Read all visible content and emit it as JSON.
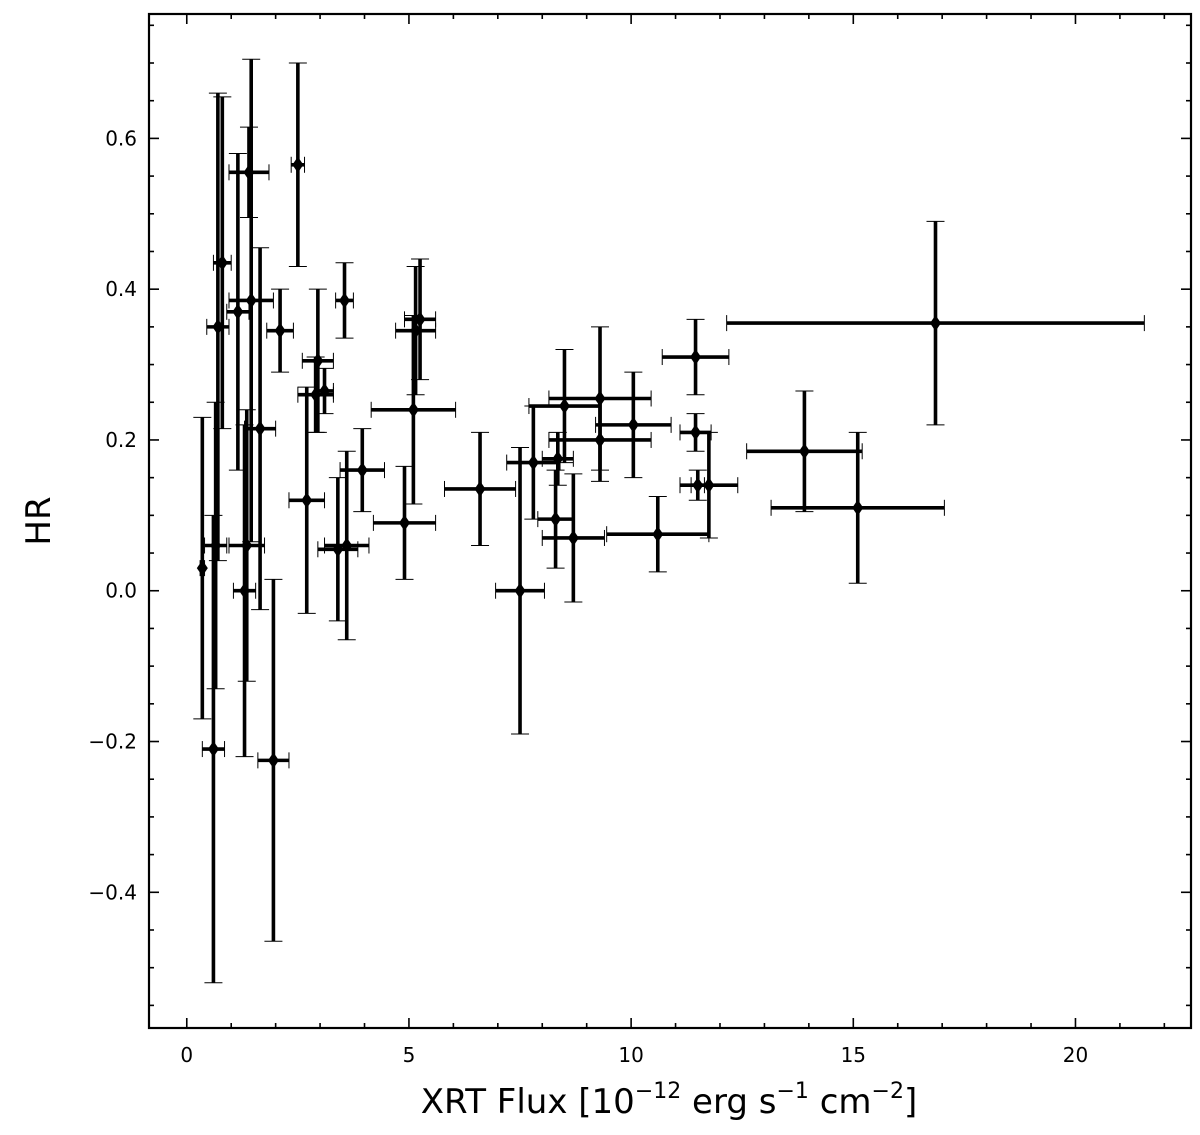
{
  "chart_data": {
    "type": "scatter",
    "title": "",
    "xlabel": "XRT Flux",
    "xlabel_unit_prefix": "[10",
    "xlabel_unit_exp1": "−12",
    "xlabel_unit_erg": " erg s",
    "xlabel_unit_exp2": "−1",
    "xlabel_unit_cm": " cm",
    "xlabel_unit_exp3": "−2",
    "xlabel_unit_suffix": "]",
    "ylabel": "HR",
    "xlim": [
      -0.85,
      22.6
    ],
    "ylim": [
      -0.58,
      0.765
    ],
    "x_ticks": [
      0,
      5,
      10,
      15,
      20
    ],
    "x_tick_labels": [
      "0",
      "5",
      "10",
      "15",
      "20"
    ],
    "y_ticks": [
      -0.4,
      -0.2,
      0.0,
      0.2,
      0.4,
      0.6
    ],
    "y_tick_labels": [
      "−0.4",
      "−0.2",
      "0.0",
      "0.2",
      "0.4",
      "0.6"
    ],
    "grid": false,
    "legend": "none",
    "marker": "diamond",
    "color": "#000000",
    "points": [
      {
        "x": 0.35,
        "y": 0.03,
        "xerr": 0.05,
        "yerr": 0.2
      },
      {
        "x": 0.6,
        "y": -0.21,
        "xerr": 0.25,
        "yerr": 0.31
      },
      {
        "x": 0.65,
        "y": 0.06,
        "xerr": 0.25,
        "yerr": 0.19
      },
      {
        "x": 0.7,
        "y": 0.35,
        "xerr": 0.25,
        "yerr": 0.31
      },
      {
        "x": 0.8,
        "y": 0.435,
        "xerr": 0.2,
        "yerr": 0.22
      },
      {
        "x": 1.15,
        "y": 0.37,
        "xerr": 0.25,
        "yerr": 0.21
      },
      {
        "x": 1.3,
        "y": 0.0,
        "xerr": 0.25,
        "yerr": 0.22
      },
      {
        "x": 1.35,
        "y": 0.06,
        "xerr": 0.4,
        "yerr": 0.18
      },
      {
        "x": 1.4,
        "y": 0.555,
        "xerr": 0.45,
        "yerr": 0.06
      },
      {
        "x": 1.45,
        "y": 0.385,
        "xerr": 0.5,
        "yerr": 0.32
      },
      {
        "x": 1.65,
        "y": 0.215,
        "xerr": 0.35,
        "yerr": 0.24
      },
      {
        "x": 1.95,
        "y": -0.225,
        "xerr": 0.35,
        "yerr": 0.24
      },
      {
        "x": 2.1,
        "y": 0.345,
        "xerr": 0.3,
        "yerr": 0.055
      },
      {
        "x": 2.5,
        "y": 0.565,
        "xerr": 0.15,
        "yerr": 0.135
      },
      {
        "x": 2.7,
        "y": 0.12,
        "xerr": 0.4,
        "yerr": 0.15
      },
      {
        "x": 2.9,
        "y": 0.26,
        "xerr": 0.4,
        "yerr": 0.05
      },
      {
        "x": 2.95,
        "y": 0.305,
        "xerr": 0.35,
        "yerr": 0.095
      },
      {
        "x": 3.1,
        "y": 0.265,
        "xerr": 0.2,
        "yerr": 0.03
      },
      {
        "x": 3.4,
        "y": 0.055,
        "xerr": 0.45,
        "yerr": 0.095
      },
      {
        "x": 3.55,
        "y": 0.385,
        "xerr": 0.2,
        "yerr": 0.05
      },
      {
        "x": 3.6,
        "y": 0.06,
        "xerr": 0.5,
        "yerr": 0.125
      },
      {
        "x": 3.95,
        "y": 0.16,
        "xerr": 0.5,
        "yerr": 0.055
      },
      {
        "x": 4.9,
        "y": 0.09,
        "xerr": 0.7,
        "yerr": 0.075
      },
      {
        "x": 5.1,
        "y": 0.24,
        "xerr": 0.95,
        "yerr": 0.125
      },
      {
        "x": 5.15,
        "y": 0.345,
        "xerr": 0.45,
        "yerr": 0.085
      },
      {
        "x": 5.25,
        "y": 0.36,
        "xerr": 0.35,
        "yerr": 0.08
      },
      {
        "x": 6.6,
        "y": 0.135,
        "xerr": 0.8,
        "yerr": 0.075
      },
      {
        "x": 7.5,
        "y": 0.0,
        "xerr": 0.55,
        "yerr": 0.19
      },
      {
        "x": 7.8,
        "y": 0.17,
        "xerr": 0.6,
        "yerr": 0.075
      },
      {
        "x": 8.3,
        "y": 0.095,
        "xerr": 0.4,
        "yerr": 0.065
      },
      {
        "x": 8.35,
        "y": 0.175,
        "xerr": 0.35,
        "yerr": 0.035
      },
      {
        "x": 8.5,
        "y": 0.245,
        "xerr": 0.8,
        "yerr": 0.075
      },
      {
        "x": 8.7,
        "y": 0.07,
        "xerr": 0.7,
        "yerr": 0.085
      },
      {
        "x": 9.3,
        "y": 0.255,
        "xerr": 1.15,
        "yerr": 0.095
      },
      {
        "x": 9.3,
        "y": 0.2,
        "xerr": 1.15,
        "yerr": 0.055
      },
      {
        "x": 10.05,
        "y": 0.22,
        "xerr": 0.85,
        "yerr": 0.07
      },
      {
        "x": 10.6,
        "y": 0.075,
        "xerr": 1.15,
        "yerr": 0.05
      },
      {
        "x": 11.45,
        "y": 0.31,
        "xerr": 0.75,
        "yerr": 0.05
      },
      {
        "x": 11.45,
        "y": 0.21,
        "xerr": 0.35,
        "yerr": 0.025
      },
      {
        "x": 11.5,
        "y": 0.14,
        "xerr": 0.15,
        "yerr": 0.02
      },
      {
        "x": 11.75,
        "y": 0.14,
        "xerr": 0.65,
        "yerr": 0.07
      },
      {
        "x": 13.9,
        "y": 0.185,
        "xerr": 1.3,
        "yerr": 0.08
      },
      {
        "x": 15.1,
        "y": 0.11,
        "xerr": 1.95,
        "yerr": 0.1
      },
      {
        "x": 16.85,
        "y": 0.355,
        "xerr": 4.7,
        "yerr": 0.135
      }
    ]
  }
}
